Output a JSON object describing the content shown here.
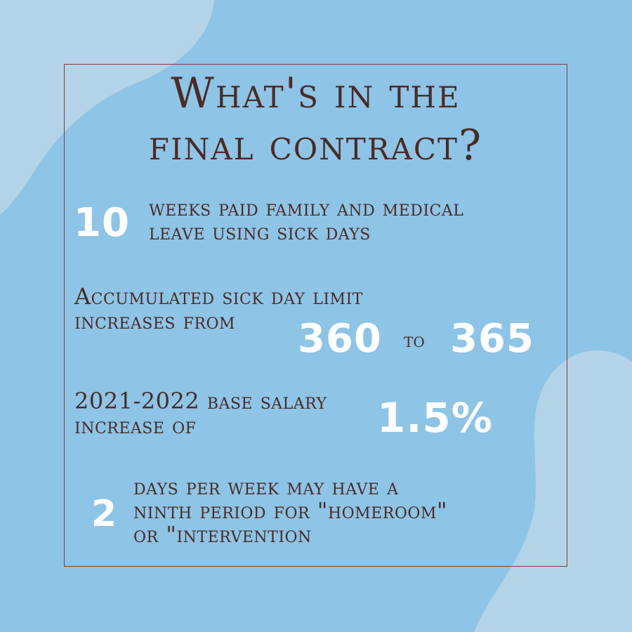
{
  "title": {
    "line1": "What's in the",
    "line2": "final contract?"
  },
  "items": [
    {
      "number": "10",
      "line1": "weeks paid family and medical",
      "line2": "leave using sick days"
    },
    {
      "line1": "Accumulated sick day limit",
      "line2": "increases from",
      "from_value": "360",
      "connector": "to",
      "to_value": "365"
    },
    {
      "line1": "2021-2022 base salary",
      "line2": "increase of",
      "value": "1.5%"
    },
    {
      "number": "2",
      "line1": "days per week may have a",
      "line2": "ninth period for \"homeroom\"",
      "line3": "or \"intervention"
    }
  ],
  "colors": {
    "background": "#8ec4e6",
    "blob": "#b4d3e6",
    "frame": "#7a3f3f",
    "text": "#4a2b25",
    "highlight": "#ffffff"
  }
}
